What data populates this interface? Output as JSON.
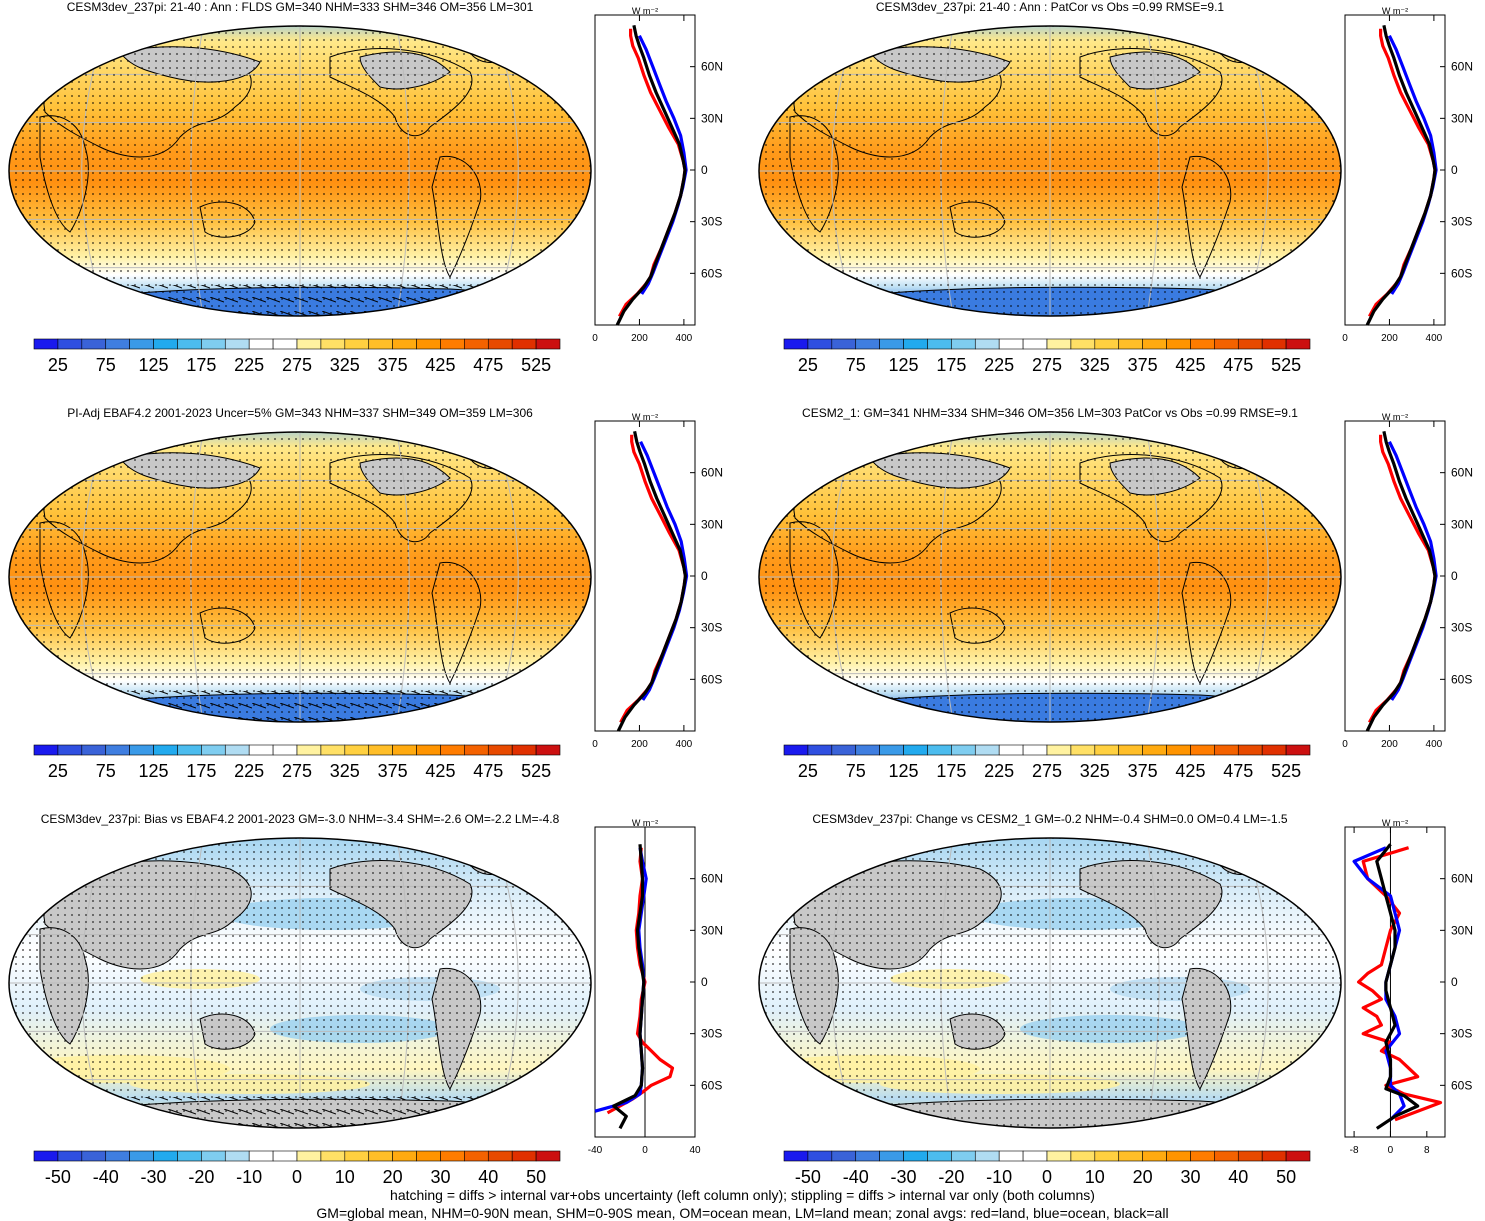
{
  "panels": [
    {
      "title": "CESM3dev_237pi: 21-40 : Ann : FLDS GM=340 NHM=333 SHM=346 OM=356 LM=301",
      "kind": "abs",
      "hatched": true
    },
    {
      "title": "CESM3dev_237pi: 21-40 : Ann : PatCor vs Obs =0.99 RMSE=9.1",
      "kind": "abs",
      "hatched": false
    },
    {
      "title": "PI-Adj EBAF4.2 2001-2023 Uncer=5% GM=343 NHM=337 SHM=349 OM=359 LM=306",
      "kind": "abs",
      "hatched": true
    },
    {
      "title": "CESM2_1: GM=341 NHM=334 SHM=346 OM=356 LM=303 PatCor vs Obs =0.99 RMSE=9.1",
      "kind": "abs",
      "hatched": false
    },
    {
      "title": "CESM3dev_237pi: Bias vs EBAF4.2 2001-2023 GM=-3.0 NHM=-3.4 SHM=-2.6 OM=-2.2 LM=-4.8",
      "kind": "diff",
      "hatched": true
    },
    {
      "title": "CESM3dev_237pi: Change vs CESM2_1 GM=-0.2 NHM=-0.4 SHM=0.0 OM=0.4 LM=-1.5",
      "kind": "diff2",
      "hatched": false
    }
  ],
  "zonal_unit": "W m⁻²",
  "lat_labels": [
    "60N",
    "30N",
    "0",
    "30S",
    "60S"
  ],
  "colorbars": {
    "abs": {
      "labels": [
        "25",
        "75",
        "125",
        "175",
        "225",
        "275",
        "325",
        "375",
        "425",
        "475",
        "525"
      ],
      "colors": [
        "#1a1aee",
        "#2f4fe0",
        "#3a63d8",
        "#3f7ee0",
        "#3a9ae8",
        "#22aaee",
        "#4cbcee",
        "#7fcdf0",
        "#b0dcf2",
        "#ffffff",
        "#ffffff",
        "#fff2a0",
        "#ffe066",
        "#ffd040",
        "#ffbe28",
        "#ffaa10",
        "#ff9400",
        "#ff7c00",
        "#f46200",
        "#e84a00",
        "#e03000",
        "#cc1010"
      ]
    },
    "diff": {
      "labels": [
        "-50",
        "-40",
        "-30",
        "-20",
        "-10",
        "0",
        "10",
        "20",
        "30",
        "40",
        "50"
      ],
      "colors": [
        "#1a1aee",
        "#2f4fe0",
        "#3a63d8",
        "#3f7ee0",
        "#3a9ae8",
        "#22aaee",
        "#4cbcee",
        "#7fcdf0",
        "#b0dcf2",
        "#ffffff",
        "#ffffff",
        "#fff2a0",
        "#ffe066",
        "#ffd040",
        "#ffbe28",
        "#ffaa10",
        "#ff9400",
        "#ff7c00",
        "#f46200",
        "#e84a00",
        "#e03000",
        "#cc1010"
      ]
    }
  },
  "chart_data": [
    {
      "type": "line",
      "panel": 0,
      "xlim": [
        0,
        450
      ],
      "xticks": [
        "0",
        "200",
        "400"
      ],
      "ylim": [
        -90,
        90
      ],
      "series": [
        {
          "color": "#ff0000",
          "lat": [
            -85,
            -78,
            -72,
            -66,
            -62,
            -55,
            -45,
            -35,
            -25,
            -15,
            -5,
            0,
            5,
            15,
            25,
            35,
            45,
            55,
            65,
            72,
            78,
            82
          ],
          "values": [
            110,
            140,
            190,
            230,
            250,
            265,
            300,
            330,
            360,
            385,
            400,
            405,
            398,
            375,
            330,
            290,
            250,
            220,
            195,
            170,
            160,
            160
          ]
        },
        {
          "color": "#0000ff",
          "lat": [
            -72,
            -66,
            -60,
            -50,
            -40,
            -30,
            -20,
            -10,
            0,
            10,
            20,
            30,
            40,
            50,
            60,
            70,
            78
          ],
          "values": [
            210,
            240,
            260,
            290,
            320,
            350,
            375,
            395,
            410,
            400,
            385,
            355,
            320,
            290,
            260,
            230,
            200
          ]
        },
        {
          "color": "#000000",
          "lat": [
            -90,
            -82,
            -75,
            -68,
            -62,
            -55,
            -45,
            -35,
            -25,
            -15,
            -5,
            0,
            5,
            15,
            25,
            35,
            45,
            55,
            65,
            72,
            78,
            84
          ],
          "values": [
            100,
            130,
            170,
            220,
            250,
            270,
            300,
            330,
            360,
            385,
            400,
            405,
            398,
            380,
            345,
            310,
            275,
            245,
            220,
            200,
            185,
            175
          ]
        }
      ]
    },
    {
      "type": "line",
      "panel": 1,
      "xlim": [
        0,
        450
      ],
      "xticks": [
        "0",
        "200",
        "400"
      ],
      "ylim": [
        -90,
        90
      ],
      "series": [
        {
          "color": "#ff0000",
          "lat": [
            -85,
            -78,
            -72,
            -66,
            -62,
            -55,
            -45,
            -35,
            -25,
            -15,
            -5,
            0,
            5,
            15,
            25,
            35,
            45,
            55,
            65,
            72,
            78,
            82
          ],
          "values": [
            110,
            140,
            190,
            230,
            250,
            265,
            300,
            330,
            360,
            385,
            400,
            405,
            398,
            375,
            330,
            290,
            250,
            220,
            195,
            170,
            160,
            160
          ]
        },
        {
          "color": "#0000ff",
          "lat": [
            -72,
            -66,
            -60,
            -50,
            -40,
            -30,
            -20,
            -10,
            0,
            10,
            20,
            30,
            40,
            50,
            60,
            70,
            78
          ],
          "values": [
            210,
            240,
            260,
            290,
            320,
            350,
            375,
            395,
            410,
            400,
            385,
            355,
            320,
            290,
            260,
            230,
            200
          ]
        },
        {
          "color": "#000000",
          "lat": [
            -90,
            -82,
            -75,
            -68,
            -62,
            -55,
            -45,
            -35,
            -25,
            -15,
            -5,
            0,
            5,
            15,
            25,
            35,
            45,
            55,
            65,
            72,
            78,
            84
          ],
          "values": [
            100,
            130,
            170,
            220,
            250,
            270,
            300,
            330,
            360,
            385,
            400,
            405,
            398,
            380,
            345,
            310,
            275,
            245,
            220,
            200,
            185,
            175
          ]
        }
      ]
    },
    {
      "type": "line",
      "panel": 2,
      "xlim": [
        0,
        450
      ],
      "xticks": [
        "0",
        "200",
        "400"
      ],
      "ylim": [
        -90,
        90
      ],
      "series": [
        {
          "color": "#ff0000",
          "lat": [
            -85,
            -78,
            -72,
            -66,
            -62,
            -55,
            -45,
            -35,
            -25,
            -15,
            -5,
            0,
            5,
            15,
            25,
            35,
            45,
            55,
            65,
            72,
            78,
            82
          ],
          "values": [
            115,
            145,
            195,
            235,
            255,
            270,
            305,
            335,
            365,
            388,
            402,
            407,
            400,
            378,
            335,
            295,
            255,
            225,
            200,
            175,
            165,
            165
          ]
        },
        {
          "color": "#0000ff",
          "lat": [
            -72,
            -66,
            -60,
            -50,
            -40,
            -30,
            -20,
            -10,
            0,
            10,
            20,
            30,
            40,
            50,
            60,
            70,
            78
          ],
          "values": [
            215,
            245,
            265,
            295,
            325,
            355,
            380,
            398,
            412,
            402,
            388,
            360,
            325,
            295,
            265,
            235,
            205
          ]
        },
        {
          "color": "#000000",
          "lat": [
            -90,
            -82,
            -75,
            -68,
            -62,
            -55,
            -45,
            -35,
            -25,
            -15,
            -5,
            0,
            5,
            15,
            25,
            35,
            45,
            55,
            65,
            72,
            78,
            84
          ],
          "values": [
            105,
            135,
            175,
            225,
            255,
            275,
            305,
            335,
            365,
            388,
            402,
            407,
            400,
            383,
            348,
            313,
            278,
            248,
            223,
            203,
            188,
            178
          ]
        }
      ]
    },
    {
      "type": "line",
      "panel": 3,
      "xlim": [
        0,
        450
      ],
      "xticks": [
        "0",
        "200",
        "400"
      ],
      "ylim": [
        -90,
        90
      ],
      "series": [
        {
          "color": "#ff0000",
          "lat": [
            -85,
            -78,
            -72,
            -66,
            -62,
            -55,
            -45,
            -35,
            -25,
            -15,
            -5,
            0,
            5,
            15,
            25,
            35,
            45,
            55,
            65,
            72,
            78,
            82
          ],
          "values": [
            110,
            140,
            190,
            230,
            250,
            265,
            300,
            330,
            360,
            385,
            400,
            405,
            398,
            375,
            330,
            290,
            250,
            220,
            195,
            170,
            160,
            160
          ]
        },
        {
          "color": "#0000ff",
          "lat": [
            -72,
            -66,
            -60,
            -50,
            -40,
            -30,
            -20,
            -10,
            0,
            10,
            20,
            30,
            40,
            50,
            60,
            70,
            78
          ],
          "values": [
            210,
            240,
            260,
            290,
            320,
            350,
            375,
            395,
            410,
            400,
            385,
            355,
            320,
            290,
            260,
            230,
            200
          ]
        },
        {
          "color": "#000000",
          "lat": [
            -90,
            -82,
            -75,
            -68,
            -62,
            -55,
            -45,
            -35,
            -25,
            -15,
            -5,
            0,
            5,
            15,
            25,
            35,
            45,
            55,
            65,
            72,
            78,
            84
          ],
          "values": [
            100,
            130,
            170,
            220,
            250,
            270,
            300,
            330,
            360,
            385,
            400,
            405,
            398,
            380,
            345,
            310,
            275,
            245,
            220,
            200,
            185,
            175
          ]
        }
      ]
    },
    {
      "type": "line",
      "panel": 4,
      "xlim": [
        -40,
        40
      ],
      "xticks": [
        "-40",
        "0",
        "40"
      ],
      "ylim": [
        -90,
        90
      ],
      "series": [
        {
          "color": "#ff0000",
          "lat": [
            -76,
            -72,
            -68,
            -64,
            -60,
            -55,
            -50,
            -45,
            -40,
            -35,
            -30,
            -20,
            -10,
            0,
            10,
            20,
            30,
            40,
            50,
            60,
            70,
            78
          ],
          "values": [
            -30,
            -20,
            -10,
            -2,
            5,
            20,
            22,
            12,
            5,
            -2,
            -6,
            -4,
            -3,
            0,
            -4,
            -6,
            -7,
            -5,
            -4,
            -2,
            -4,
            -3
          ]
        },
        {
          "color": "#0000ff",
          "lat": [
            -75,
            -70,
            -65,
            -60,
            -50,
            -40,
            -30,
            -20,
            -10,
            0,
            10,
            20,
            30,
            40,
            50,
            60,
            70,
            78
          ],
          "values": [
            -40,
            -15,
            -4,
            -3,
            -2,
            -3,
            -4,
            -3,
            -2,
            -1,
            -2,
            -4,
            -5,
            -3,
            -1,
            1,
            -2,
            -4
          ]
        },
        {
          "color": "#000000",
          "lat": [
            -85,
            -78,
            -72,
            -66,
            -60,
            -50,
            -40,
            -30,
            -20,
            -10,
            0,
            10,
            20,
            30,
            40,
            50,
            60,
            70,
            80
          ],
          "values": [
            -20,
            -15,
            -25,
            -8,
            -3,
            -2,
            -3,
            -4,
            -3,
            -2,
            -1,
            -3,
            -5,
            -6,
            -4,
            -2,
            -2,
            -3,
            -4
          ]
        }
      ]
    },
    {
      "type": "line",
      "panel": 5,
      "xlim": [
        -10,
        12
      ],
      "xticks": [
        "-8",
        "0",
        "8"
      ],
      "ylim": [
        -90,
        90
      ],
      "series": [
        {
          "color": "#ff0000",
          "lat": [
            -80,
            -75,
            -70,
            -65,
            -60,
            -55,
            -50,
            -45,
            -40,
            -35,
            -30,
            -25,
            -20,
            -15,
            -10,
            -5,
            0,
            5,
            10,
            20,
            30,
            40,
            50,
            60,
            70,
            78
          ],
          "values": [
            1,
            6,
            11,
            3,
            -1,
            6,
            4,
            2,
            -2,
            0,
            -6,
            -2,
            -3,
            -6,
            -2,
            -4,
            -7,
            -5,
            -2,
            -1,
            0,
            2,
            -1,
            -5,
            -6,
            4
          ]
        },
        {
          "color": "#0000ff",
          "lat": [
            -80,
            -72,
            -65,
            -60,
            -50,
            -40,
            -30,
            -20,
            -10,
            0,
            10,
            20,
            30,
            40,
            50,
            60,
            70,
            78
          ],
          "values": [
            0,
            3,
            2,
            0,
            0,
            -1,
            2,
            1,
            -1,
            -1,
            0,
            1,
            2,
            1,
            0,
            -5,
            -8,
            -1
          ]
        },
        {
          "color": "#000000",
          "lat": [
            -85,
            -78,
            -72,
            -66,
            -62,
            -55,
            -45,
            -35,
            -25,
            -15,
            -5,
            0,
            10,
            20,
            30,
            40,
            50,
            60,
            70,
            80
          ],
          "values": [
            -3,
            1,
            6,
            3,
            -1,
            0,
            0,
            -1,
            1,
            0,
            -1,
            -1,
            0,
            1,
            1,
            0,
            -1,
            -2,
            -3,
            0
          ]
        }
      ]
    }
  ],
  "footer": {
    "line1": "hatching = diffs > internal var+obs uncertainty (left column only); stippling = diffs > internal var only (both columns)",
    "line2": "GM=global mean, NHM=0-90N mean, SHM=0-90S mean, OM=ocean mean, LM=land mean; zonal avgs: red=land, blue=ocean, black=all"
  }
}
